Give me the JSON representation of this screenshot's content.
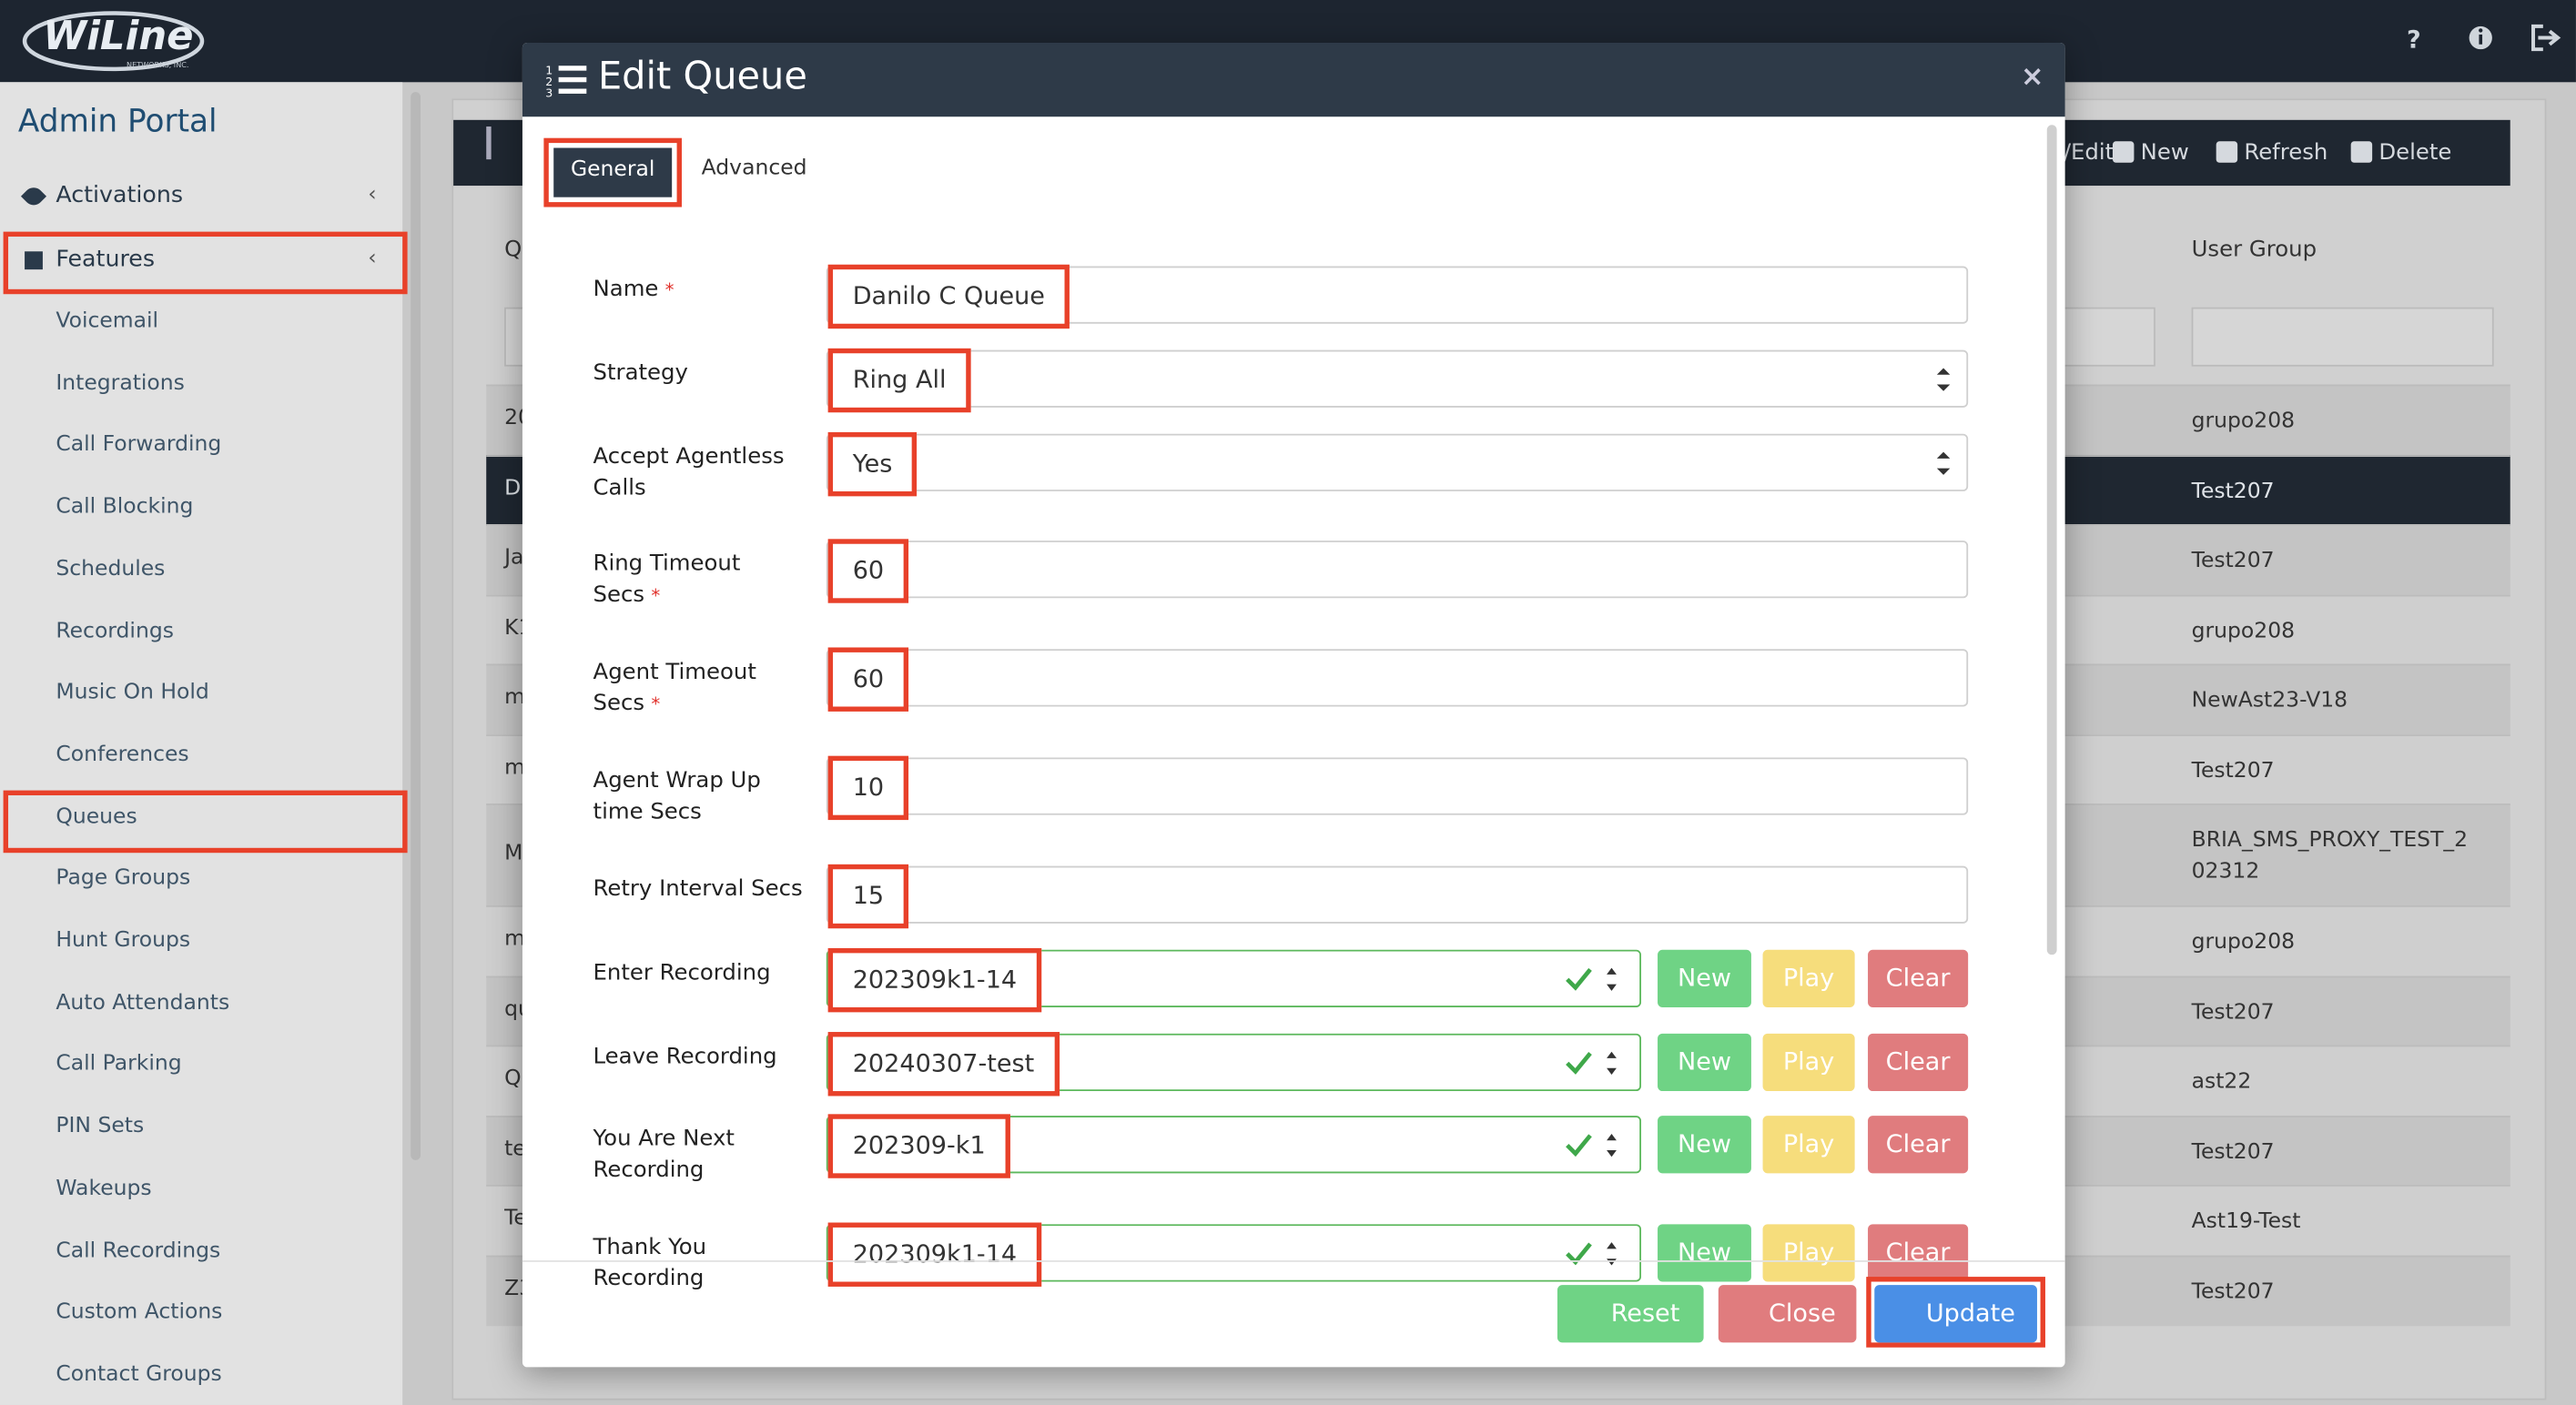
{
  "header": {
    "logo": "WiLine",
    "logo_sub": "NETWORKS, INC."
  },
  "sidebar": {
    "title": "Admin Portal",
    "items": [
      "Activations",
      "Features",
      "Voicemail",
      "Integrations",
      "Call Forwarding",
      "Call Blocking",
      "Schedules",
      "Recordings",
      "Music On Hold",
      "Conferences",
      "Queues",
      "Page Groups",
      "Hunt Groups",
      "Auto Attendants",
      "Call Parking",
      "PIN Sets",
      "Wakeups",
      "Call Recordings",
      "Custom Actions",
      "Contact Groups"
    ]
  },
  "toolbar": {
    "items": [
      "/Edit",
      "New",
      "Refresh",
      "Delete"
    ]
  },
  "table": {
    "columns": [
      "Q",
      "User Group"
    ],
    "rows": [
      [
        "20",
        "grupo208"
      ],
      [
        "D",
        "Test207"
      ],
      [
        "Ja",
        "Test207"
      ],
      [
        "K1",
        "grupo208"
      ],
      [
        "m",
        "NewAst23-V18"
      ],
      [
        "m",
        "Test207"
      ],
      [
        "M",
        "BRIA_SMS_PROXY_TEST_202312"
      ],
      [
        "m",
        "grupo208"
      ],
      [
        "qu",
        "Test207"
      ],
      [
        "Q",
        "ast22"
      ],
      [
        "te",
        "Test207"
      ],
      [
        "Te",
        "Ast19-Test"
      ],
      [
        "Z3",
        "Test207"
      ]
    ]
  },
  "modal": {
    "title": "Edit Queue",
    "tabs": [
      "General",
      "Advanced"
    ],
    "required_mark": "*",
    "fields": [
      {
        "label": "Name",
        "value": "Danilo C Queue",
        "required": true,
        "control": "text"
      },
      {
        "label": "Strategy",
        "value": "Ring All",
        "required": false,
        "control": "select"
      },
      {
        "label": "Accept Agentless Calls",
        "value": "Yes",
        "required": false,
        "control": "select"
      },
      {
        "label": "Ring Timeout Secs",
        "value": "60",
        "required": true,
        "control": "text"
      },
      {
        "label": "Agent Timeout Secs",
        "value": "60",
        "required": true,
        "control": "text"
      },
      {
        "label": "Agent Wrap Up time Secs",
        "value": "10",
        "required": false,
        "control": "text"
      },
      {
        "label": "Retry Interval Secs",
        "value": "15",
        "required": false,
        "control": "text"
      },
      {
        "label": "Enter Recording",
        "value": "202309k1-14",
        "required": false,
        "control": "recording"
      },
      {
        "label": "Leave Recording",
        "value": "20240307-test",
        "required": false,
        "control": "recording"
      },
      {
        "label": "You Are Next Recording",
        "value": "202309-k1",
        "required": false,
        "control": "recording"
      },
      {
        "label": "Thank You Recording",
        "value": "202309k1-14",
        "required": false,
        "control": "recording"
      }
    ],
    "recording_buttons": [
      "New",
      "Play",
      "Clear"
    ],
    "footer_buttons": [
      "Reset",
      "Close",
      "Update"
    ]
  }
}
